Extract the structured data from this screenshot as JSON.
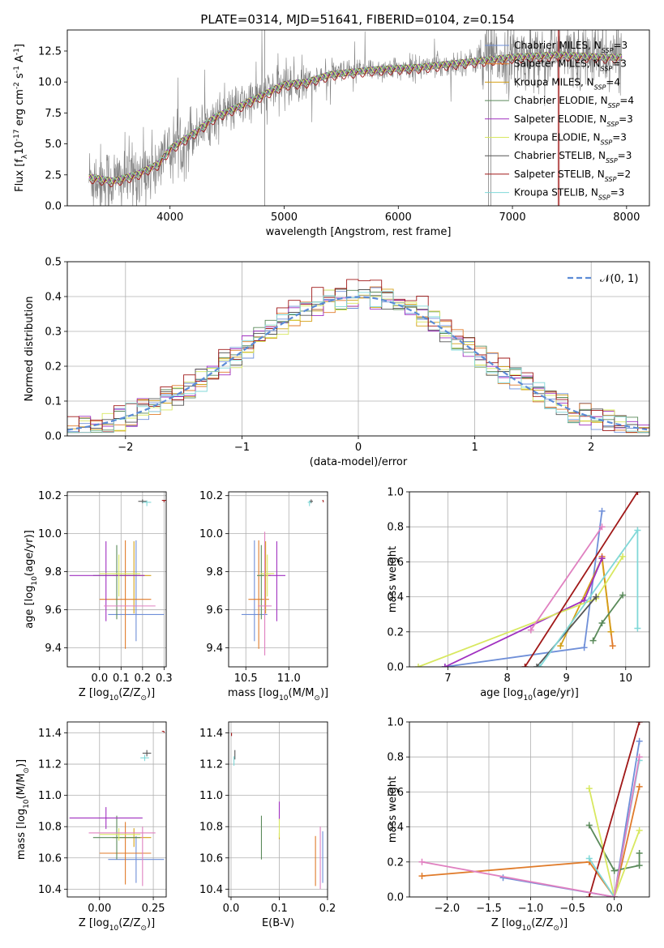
{
  "figure": {
    "title": "PLATE=0314, MJD=51641, FIBERID=0104, z=0.154"
  },
  "models": [
    {
      "name": "Chabrier MILES, N$_{SSP}$=3",
      "base": "Chabrier MILES, N",
      "sub": "SSP",
      "suffix": "=3",
      "color": "#6f8fd8"
    },
    {
      "name": "Salpeter MILES, N$_{SSP}$=3",
      "base": "Salpeter MILES, N",
      "sub": "SSP",
      "suffix": "=3",
      "color": "#e07b2a"
    },
    {
      "name": "Kroupa MILES, N$_{SSP}$=4",
      "base": "Kroupa MILES, N",
      "sub": "SSP",
      "suffix": "=4",
      "color": "#d4a017"
    },
    {
      "name": "Chabrier ELODIE, N$_{SSP}$=4",
      "base": "Chabrier ELODIE, N",
      "sub": "SSP",
      "suffix": "=4",
      "color": "#5a8a5a"
    },
    {
      "name": "Salpeter ELODIE, N$_{SSP}$=3",
      "base": "Salpeter ELODIE, N",
      "sub": "SSP",
      "suffix": "=3",
      "color": "#a030c0"
    },
    {
      "name": "Kroupa ELODIE, N$_{SSP}$=3",
      "base": "Kroupa ELODIE, N",
      "sub": "SSP",
      "suffix": "=3",
      "color": "#d8e860"
    },
    {
      "name": "Chabrier STELIB, N$_{SSP}$=3",
      "base": "Chabrier STELIB, N",
      "sub": "SSP",
      "suffix": "=3",
      "color": "#555555"
    },
    {
      "name": "Salpeter STELIB, N$_{SSP}$=2",
      "base": "Salpeter STELIB, N",
      "sub": "SSP",
      "suffix": "=2",
      "color": "#a01818"
    },
    {
      "name": "Kroupa STELIB, N$_{SSP}$=3",
      "base": "Kroupa STELIB, N",
      "sub": "SSP",
      "suffix": "=3",
      "color": "#80d8d8"
    }
  ],
  "chart_data": [
    {
      "id": "spectrum",
      "type": "line",
      "title": "PLATE=0314, MJD=51641, FIBERID=0104, z=0.154",
      "xlabel": "wavelength [Angstrom, rest frame]",
      "ylabel": "Flux [f$_\\lambda$10$^{-17}$ erg cm$^{-2}$ s$^{-1}$ A$^{-1}$]",
      "xlim": [
        3100,
        8200
      ],
      "ylim": [
        0,
        14.2
      ],
      "xticks": [
        4000,
        5000,
        6000,
        7000,
        8000
      ],
      "yticks": [
        0.0,
        2.5,
        5.0,
        7.5,
        10.0,
        12.5
      ],
      "data_color": "#808080",
      "continuum": {
        "x": [
          3300,
          3500,
          3700,
          3900,
          4000,
          4200,
          4400,
          4600,
          4800,
          5000,
          5200,
          5400,
          5600,
          5800,
          6000,
          6200,
          6400,
          6600,
          6800,
          7000,
          7200,
          7400,
          7600,
          7800,
          7950
        ],
        "y": [
          2.3,
          2.0,
          2.5,
          3.4,
          4.6,
          5.8,
          7.2,
          8.0,
          8.9,
          9.8,
          10.0,
          10.6,
          10.8,
          11.0,
          11.1,
          11.2,
          11.4,
          11.6,
          11.8,
          12.0,
          12.1,
          12.2,
          12.1,
          12.0,
          12.0
        ]
      },
      "grid": false
    },
    {
      "id": "residuals",
      "type": "line",
      "xlabel": "(data-model)/error",
      "ylabel": "Normed distribution",
      "xlim": [
        -2.5,
        2.5
      ],
      "ylim": [
        0,
        0.5
      ],
      "xticks": [
        -2,
        -1,
        0,
        1,
        2
      ],
      "yticks": [
        0.0,
        0.1,
        0.2,
        0.3,
        0.4,
        0.5
      ],
      "legend": "$\\mathcal{N}(0,1)$",
      "legend_loc": "upper right",
      "grid": true
    },
    {
      "id": "z_age",
      "type": "scatter",
      "xlabel": "Z [log$_{10}$(Z/Z$_\\odot$)]",
      "ylabel": "age  [log$_{10}$(age/yr)]",
      "xlim": [
        -0.15,
        0.31
      ],
      "ylim": [
        9.3,
        10.22
      ],
      "xticks": [
        0.0,
        0.1,
        0.2,
        0.3
      ],
      "yticks": [
        9.4,
        9.6,
        9.8,
        10.0,
        10.2
      ],
      "points": [
        {
          "m": 0,
          "x": 0.17,
          "y": 9.575,
          "xerr": [
            0.13,
            0.13
          ],
          "yerr": [
            0.14,
            0.39
          ]
        },
        {
          "m": 1,
          "x": 0.12,
          "y": 9.655,
          "xerr": [
            0.12,
            0.12
          ],
          "yerr": [
            0.26,
            0.31
          ]
        },
        {
          "m": 2,
          "x": 0.16,
          "y": 9.78,
          "xerr": [
            0.1,
            0.08
          ],
          "yerr": [
            0.2,
            0.18
          ]
        },
        {
          "m": 3,
          "x": 0.08,
          "y": 9.78,
          "xerr": [
            0.11,
            0.11
          ],
          "yerr": [
            0.23,
            0.16
          ]
        },
        {
          "m": 4,
          "x": 0.03,
          "y": 9.78,
          "xerr": [
            0.17,
            0.18
          ],
          "yerr": [
            0.24,
            0.18
          ]
        },
        {
          "m": 5,
          "x": 0.09,
          "y": 9.79,
          "xerr": [
            0.09,
            0.1
          ],
          "yerr": [
            0.12,
            0.1
          ]
        },
        {
          "m": 6,
          "x": 0.2,
          "y": 10.17,
          "xerr": [
            0.02,
            0.02
          ],
          "yerr": [
            0.01,
            0.01
          ]
        },
        {
          "m": 7,
          "x": 0.3,
          "y": 10.175,
          "xerr": [
            0.01,
            0.01
          ],
          "yerr": [
            0.01,
            0.0
          ]
        },
        {
          "m": 8,
          "x": 0.22,
          "y": 10.165,
          "xerr": [
            0.02,
            0.02
          ],
          "yerr": [
            0.02,
            0.01
          ]
        },
        {
          "m": 0,
          "x": 0.2,
          "y": 9.62,
          "xerr": [
            0.18,
            0.06
          ],
          "yerr": [
            0.0,
            0.0
          ],
          "only": "pink"
        }
      ],
      "grid": true
    },
    {
      "id": "mass_age",
      "type": "scatter",
      "xlabel": "mass [log$_{10}$(M/M$_\\odot$)]",
      "ylabel": "",
      "xlim": [
        10.3,
        11.45
      ],
      "ylim": [
        9.3,
        10.22
      ],
      "xticks": [
        10.5,
        11.0
      ],
      "yticks": [
        9.4,
        9.6,
        9.8,
        10.0,
        10.2
      ],
      "grid": true
    },
    {
      "id": "age_weight",
      "type": "line",
      "xlabel": "age  [log$_{10}$(age/yr)]",
      "ylabel": "mass weight",
      "xlim": [
        6.35,
        10.4
      ],
      "ylim": [
        0,
        1.0
      ],
      "xticks": [
        7,
        8,
        9,
        10
      ],
      "yticks": [
        0.0,
        0.2,
        0.4,
        0.6,
        0.8,
        1.0
      ],
      "grid": true
    },
    {
      "id": "z_mass",
      "type": "scatter",
      "xlabel": "Z [log$_{10}$(Z/Z$_\\odot$)]",
      "ylabel": "mass [log$_{10}$(M/M$_\\odot$)]",
      "xlim": [
        -0.15,
        0.31
      ],
      "ylim": [
        10.35,
        11.47
      ],
      "xticks": [
        0.0,
        0.25
      ],
      "yticks": [
        10.4,
        10.6,
        10.8,
        11.0,
        11.2,
        11.4
      ],
      "grid": true
    },
    {
      "id": "ebv_mass",
      "type": "scatter",
      "xlabel": "E(B-V)",
      "ylabel": "",
      "xlim": [
        -0.005,
        0.2
      ],
      "ylim": [
        10.35,
        11.47
      ],
      "xticks": [
        0.0,
        0.1,
        0.2
      ],
      "yticks": [
        10.4,
        10.6,
        10.8,
        11.0,
        11.2,
        11.4
      ],
      "grid": true
    },
    {
      "id": "z_weight",
      "type": "line",
      "xlabel": "Z [log$_{10}$(Z/Z$_\\odot$)]",
      "ylabel": "mass weight",
      "xlim": [
        -2.45,
        0.42
      ],
      "ylim": [
        0,
        1.0
      ],
      "xticks": [
        -2.0,
        -1.5,
        -1.0,
        -0.5,
        0.0
      ],
      "yticks": [
        0.0,
        0.2,
        0.4,
        0.6,
        0.8,
        1.0
      ],
      "grid": true
    }
  ]
}
